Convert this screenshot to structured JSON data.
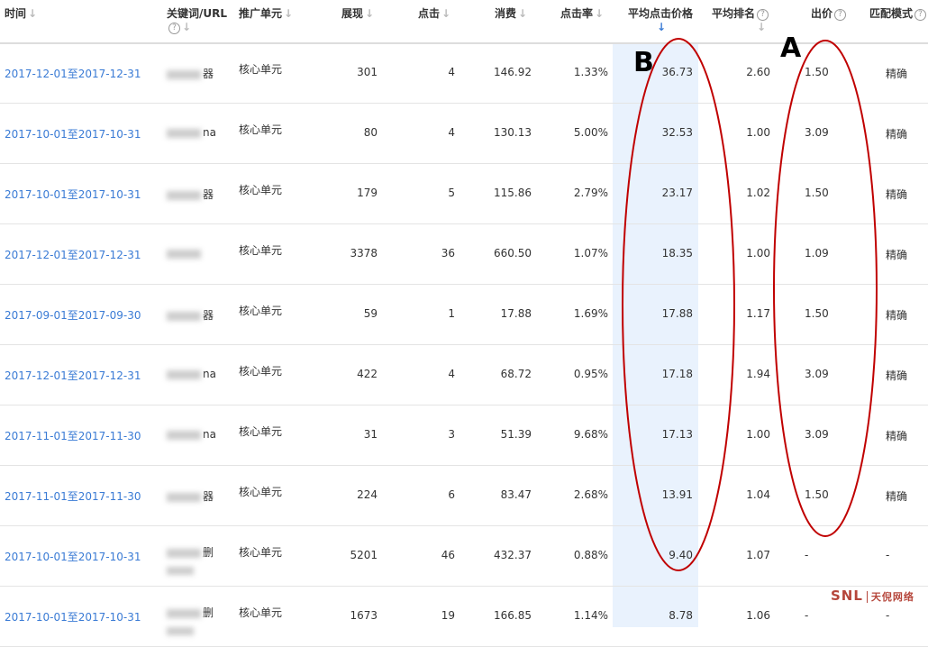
{
  "headers": {
    "time": "时间",
    "keyword": "关键词/URL",
    "unit": "推广单元",
    "impressions": "展现",
    "clicks": "点击",
    "cost": "消费",
    "ctr": "点击率",
    "avg_cpc": "平均点击价格",
    "avg_rank": "平均排名",
    "bid": "出价",
    "match": "匹配模式"
  },
  "sort_icon": "arrow-down-icon",
  "help_icon": "question-circle-icon",
  "annotations": {
    "a": "A",
    "b": "B"
  },
  "watermark": "SNL 天倪网络",
  "accent": "#3a7bd5",
  "highlight": "#e9f2fd",
  "annotation_color": "#c00000",
  "rows": [
    {
      "time": "2017-12-01至2017-12-31",
      "keyword": "器",
      "unit": "核心单元",
      "impressions": "301",
      "clicks": "4",
      "cost": "146.92",
      "ctr": "1.33%",
      "avg_cpc": "36.73",
      "avg_rank": "2.60",
      "bid": "1.50",
      "match": "精确"
    },
    {
      "time": "2017-10-01至2017-10-31",
      "keyword": "na",
      "unit": "核心单元",
      "impressions": "80",
      "clicks": "4",
      "cost": "130.13",
      "ctr": "5.00%",
      "avg_cpc": "32.53",
      "avg_rank": "1.00",
      "bid": "3.09",
      "match": "精确"
    },
    {
      "time": "2017-10-01至2017-10-31",
      "keyword": "器",
      "unit": "核心单元",
      "impressions": "179",
      "clicks": "5",
      "cost": "115.86",
      "ctr": "2.79%",
      "avg_cpc": "23.17",
      "avg_rank": "1.02",
      "bid": "1.50",
      "match": "精确"
    },
    {
      "time": "2017-12-01至2017-12-31",
      "keyword": "",
      "unit": "核心单元",
      "impressions": "3378",
      "clicks": "36",
      "cost": "660.50",
      "ctr": "1.07%",
      "avg_cpc": "18.35",
      "avg_rank": "1.00",
      "bid": "1.09",
      "match": "精确"
    },
    {
      "time": "2017-09-01至2017-09-30",
      "keyword": "器",
      "unit": "核心单元",
      "impressions": "59",
      "clicks": "1",
      "cost": "17.88",
      "ctr": "1.69%",
      "avg_cpc": "17.88",
      "avg_rank": "1.17",
      "bid": "1.50",
      "match": "精确"
    },
    {
      "time": "2017-12-01至2017-12-31",
      "keyword": "na",
      "unit": "核心单元",
      "impressions": "422",
      "clicks": "4",
      "cost": "68.72",
      "ctr": "0.95%",
      "avg_cpc": "17.18",
      "avg_rank": "1.94",
      "bid": "3.09",
      "match": "精确"
    },
    {
      "time": "2017-11-01至2017-11-30",
      "keyword": "na",
      "unit": "核心单元",
      "impressions": "31",
      "clicks": "3",
      "cost": "51.39",
      "ctr": "9.68%",
      "avg_cpc": "17.13",
      "avg_rank": "1.00",
      "bid": "3.09",
      "match": "精确"
    },
    {
      "time": "2017-11-01至2017-11-30",
      "keyword": "器",
      "unit": "核心单元",
      "impressions": "224",
      "clicks": "6",
      "cost": "83.47",
      "ctr": "2.68%",
      "avg_cpc": "13.91",
      "avg_rank": "1.04",
      "bid": "1.50",
      "match": "精确"
    },
    {
      "time": "2017-10-01至2017-10-31",
      "keyword": "删",
      "unit": "核心单元",
      "impressions": "5201",
      "clicks": "46",
      "cost": "432.37",
      "ctr": "0.88%",
      "avg_cpc": "9.40",
      "avg_rank": "1.07",
      "bid": "-",
      "match": "-"
    },
    {
      "time": "2017-10-01至2017-10-31",
      "keyword": "删",
      "unit": "核心单元",
      "impressions": "1673",
      "clicks": "19",
      "cost": "166.85",
      "ctr": "1.14%",
      "avg_cpc": "8.78",
      "avg_rank": "1.06",
      "bid": "-",
      "match": "-"
    }
  ]
}
